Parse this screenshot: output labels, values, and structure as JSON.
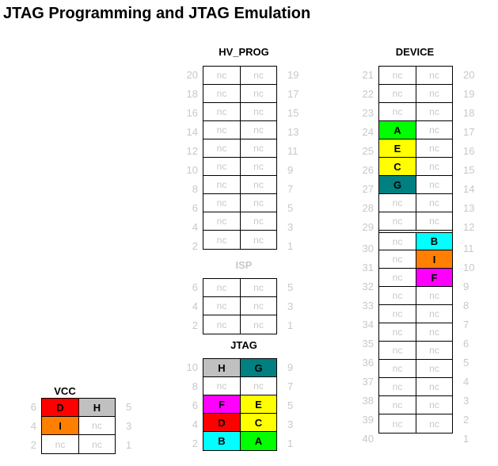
{
  "title": "JTAG Programming and JTAG Emulation",
  "colors": {
    "A": "#00ff00",
    "B": "#00ffff",
    "C": "#ffff00",
    "D": "#ff0000",
    "E": "#ffff00",
    "F": "#ff00ff",
    "G": "#008080",
    "H": "#c0c0c0",
    "I": "#ff8000"
  },
  "connectors": {
    "hv_prog": {
      "label": "HV_PROG",
      "rows": [
        {
          "lp": "20",
          "a": "nc",
          "b": "nc",
          "rp": "19"
        },
        {
          "lp": "18",
          "a": "nc",
          "b": "nc",
          "rp": "17"
        },
        {
          "lp": "16",
          "a": "nc",
          "b": "nc",
          "rp": "15"
        },
        {
          "lp": "14",
          "a": "nc",
          "b": "nc",
          "rp": "13"
        },
        {
          "lp": "12",
          "a": "nc",
          "b": "nc",
          "rp": "11"
        },
        {
          "lp": "10",
          "a": "nc",
          "b": "nc",
          "rp": "9"
        },
        {
          "lp": "8",
          "a": "nc",
          "b": "nc",
          "rp": "7"
        },
        {
          "lp": "6",
          "a": "nc",
          "b": "nc",
          "rp": "5"
        },
        {
          "lp": "4",
          "a": "nc",
          "b": "nc",
          "rp": "3"
        },
        {
          "lp": "2",
          "a": "nc",
          "b": "nc",
          "rp": "1"
        }
      ]
    },
    "isp": {
      "label": "ISP",
      "rows": [
        {
          "lp": "6",
          "a": "nc",
          "b": "nc",
          "rp": "5"
        },
        {
          "lp": "4",
          "a": "nc",
          "b": "nc",
          "rp": "3"
        },
        {
          "lp": "2",
          "a": "nc",
          "b": "nc",
          "rp": "1"
        }
      ]
    },
    "jtag": {
      "label": "JTAG",
      "rows": [
        {
          "lp": "10",
          "a": "H",
          "b": "G",
          "rp": "9"
        },
        {
          "lp": "8",
          "a": "nc",
          "b": "nc",
          "rp": "7"
        },
        {
          "lp": "6",
          "a": "F",
          "b": "E",
          "rp": "5"
        },
        {
          "lp": "4",
          "a": "D",
          "b": "C",
          "rp": "3"
        },
        {
          "lp": "2",
          "a": "B",
          "b": "A",
          "rp": "1"
        }
      ]
    },
    "vcc": {
      "label": "VCC",
      "rows": [
        {
          "lp": "6",
          "a": "D",
          "b": "H",
          "rp": "5"
        },
        {
          "lp": "4",
          "a": "I",
          "b": "nc",
          "rp": "3"
        },
        {
          "lp": "2",
          "a": "nc",
          "b": "nc",
          "rp": "1"
        }
      ]
    },
    "device": {
      "label": "DEVICE",
      "rows": [
        {
          "lp": "21",
          "a": "nc",
          "b": "nc",
          "rp": "20"
        },
        {
          "lp": "22",
          "a": "nc",
          "b": "nc",
          "rp": "19"
        },
        {
          "lp": "23",
          "a": "nc",
          "b": "nc",
          "rp": "18"
        },
        {
          "lp": "24",
          "a": "A",
          "b": "nc",
          "rp": "17"
        },
        {
          "lp": "25",
          "a": "E",
          "b": "nc",
          "rp": "16"
        },
        {
          "lp": "26",
          "a": "C",
          "b": "nc",
          "rp": "15"
        },
        {
          "lp": "27",
          "a": "G",
          "b": "nc",
          "rp": "14"
        },
        {
          "lp": "28",
          "a": "nc",
          "b": "nc",
          "rp": "13"
        },
        {
          "lp": "29",
          "a": "nc",
          "b": "nc",
          "rp": "12"
        },
        {
          "lp": "30",
          "a": "nc",
          "b": "B",
          "rp": "11"
        },
        {
          "lp": "31",
          "a": "nc",
          "b": "I",
          "rp": "10"
        },
        {
          "lp": "32",
          "a": "nc",
          "b": "F",
          "rp": "9"
        },
        {
          "lp": "33",
          "a": "nc",
          "b": "nc",
          "rp": "8"
        },
        {
          "lp": "34",
          "a": "nc",
          "b": "nc",
          "rp": "7"
        },
        {
          "lp": "35",
          "a": "nc",
          "b": "nc",
          "rp": "6"
        },
        {
          "lp": "36",
          "a": "nc",
          "b": "nc",
          "rp": "5"
        },
        {
          "lp": "37",
          "a": "nc",
          "b": "nc",
          "rp": "4"
        },
        {
          "lp": "38",
          "a": "nc",
          "b": "nc",
          "rp": "3"
        },
        {
          "lp": "39",
          "a": "nc",
          "b": "nc",
          "rp": "2"
        },
        {
          "lp": "40",
          "a": "nc",
          "b": "nc",
          "rp": "1"
        }
      ]
    }
  }
}
